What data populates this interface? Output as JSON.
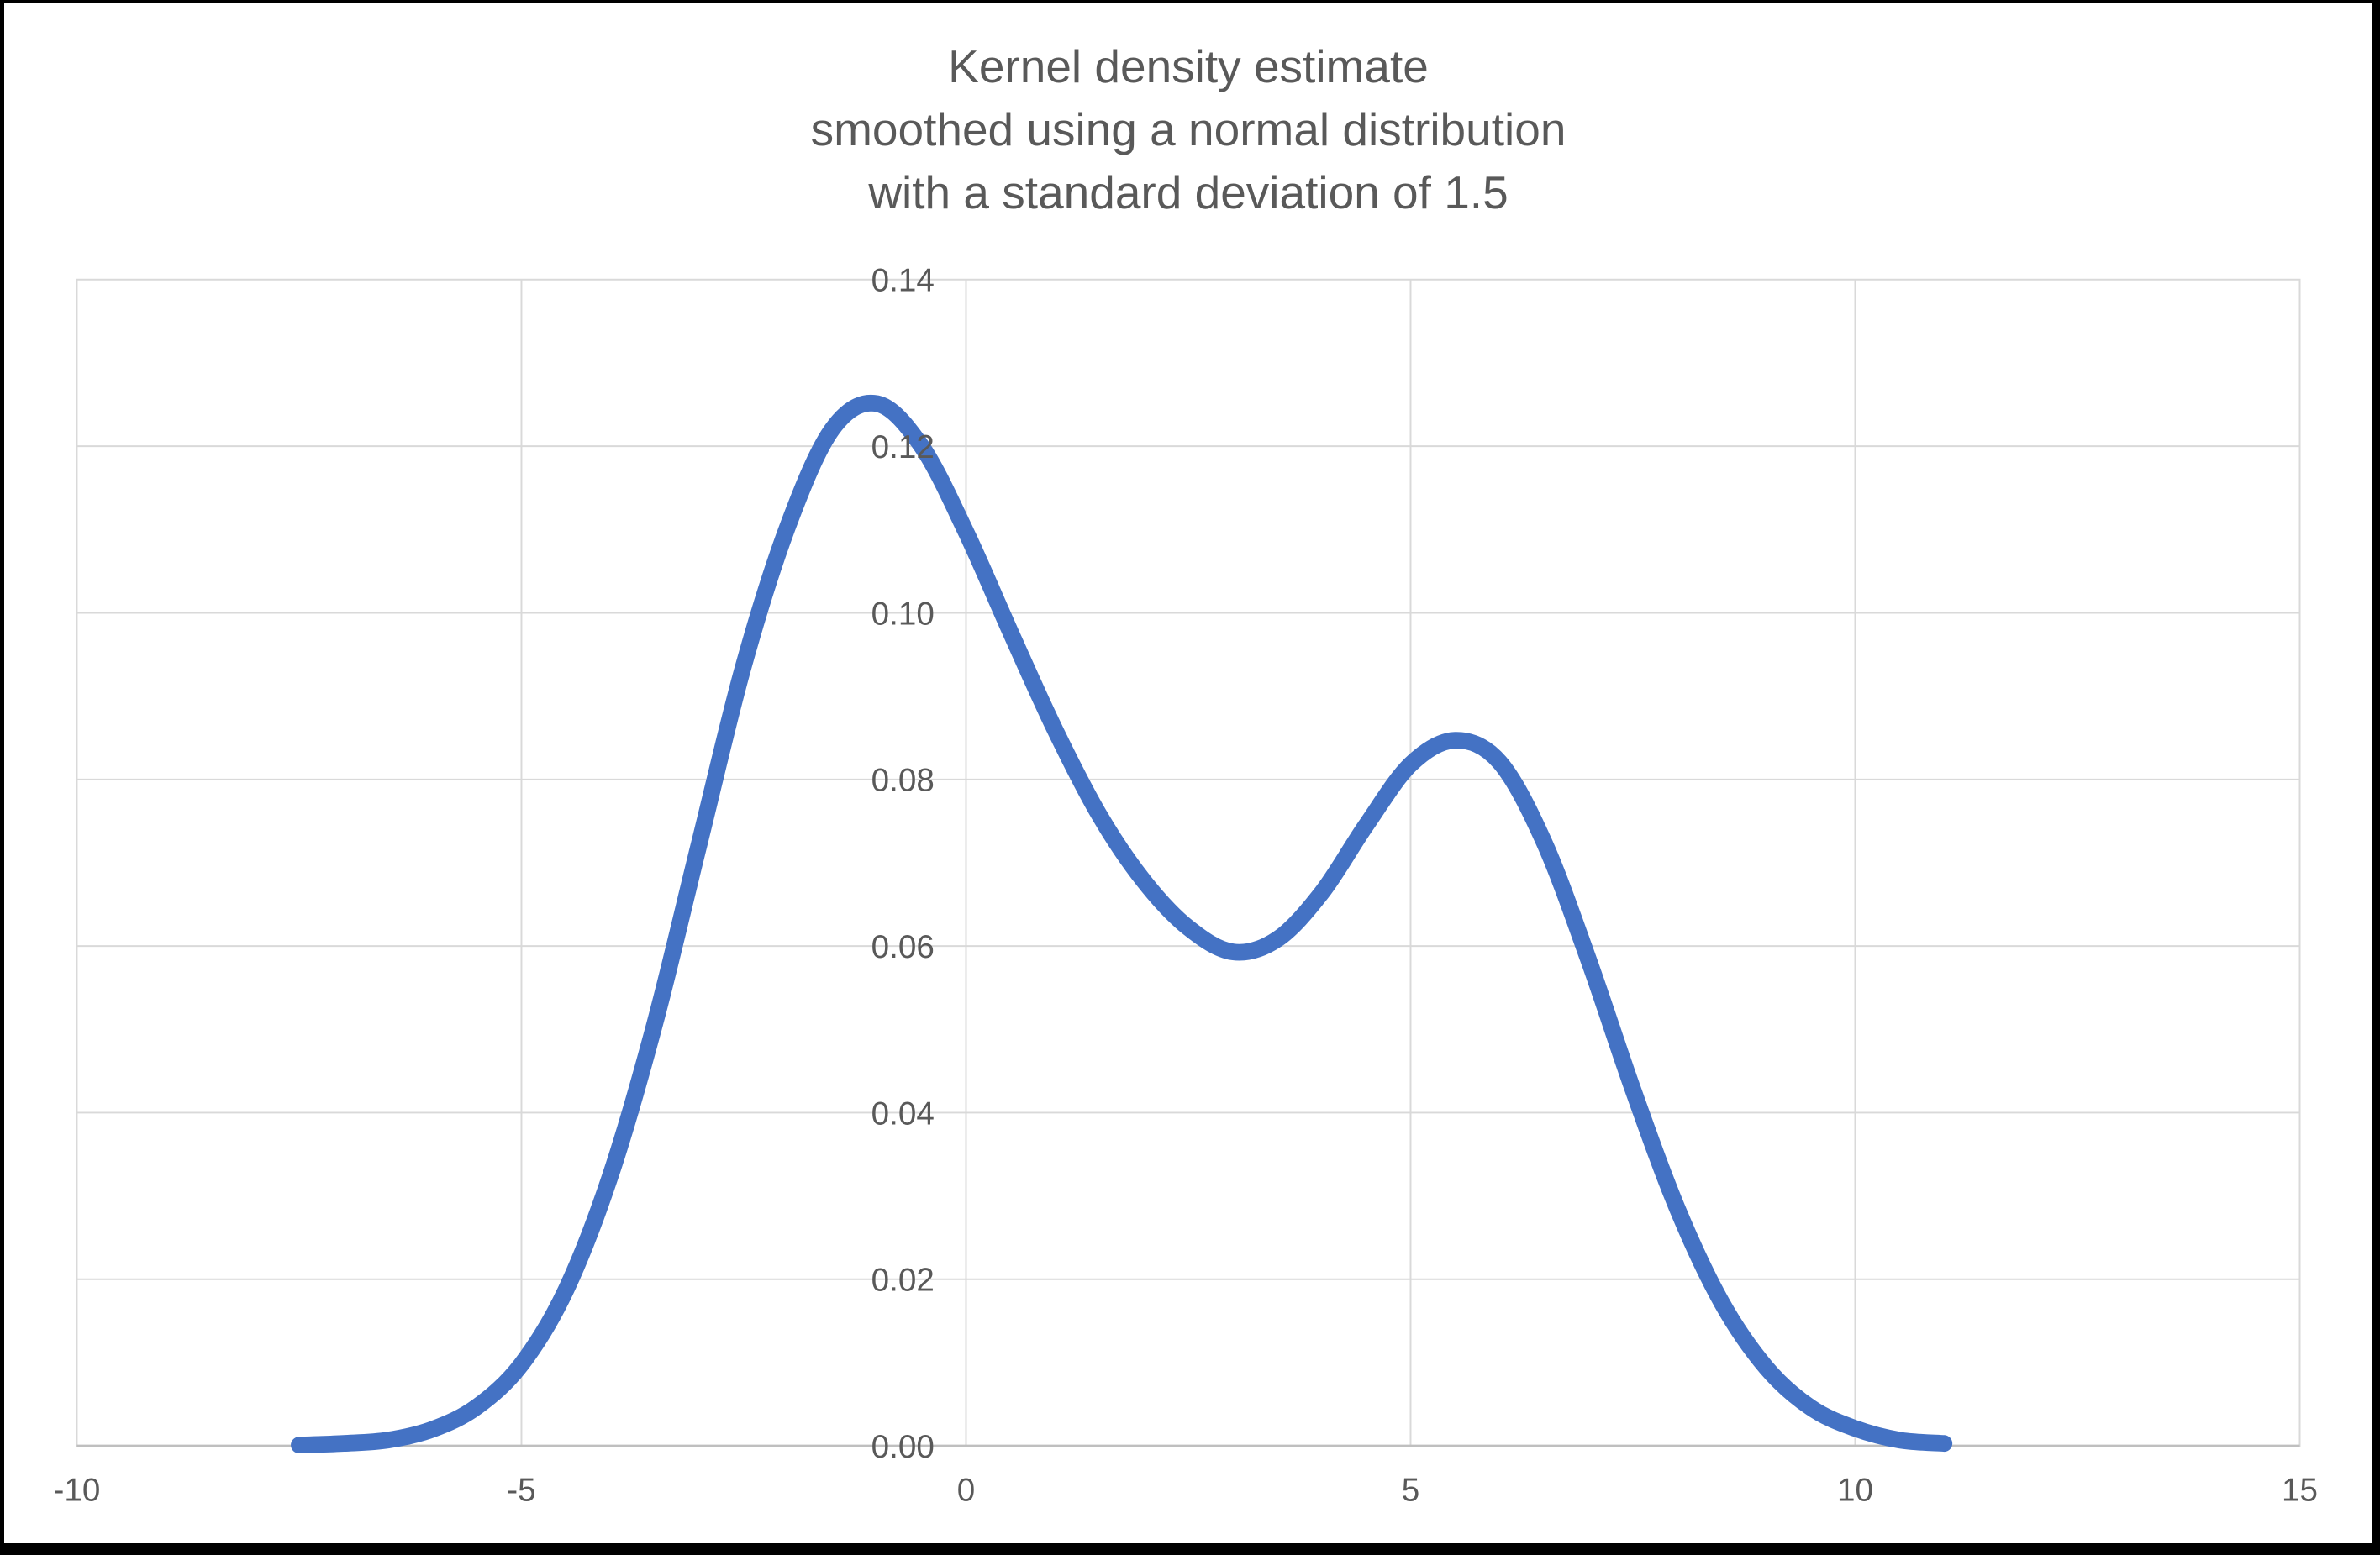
{
  "title": {
    "lines": [
      "Kernel density estimate",
      "smoothed using a normal distribution",
      "with a standard deviation of 1.5"
    ],
    "color": "#595959"
  },
  "chart_data": {
    "type": "line",
    "title": "Kernel density estimate smoothed using a normal distribution with a standard deviation of 1.5",
    "xlabel": "",
    "ylabel": "",
    "xlim": [
      -10,
      15
    ],
    "ylim": [
      0,
      0.14
    ],
    "x_ticks": [
      -10,
      -5,
      0,
      5,
      10,
      15
    ],
    "x_tick_labels": [
      "-10",
      "-5",
      "0",
      "5",
      "10",
      "15"
    ],
    "y_ticks": [
      0,
      0.02,
      0.04,
      0.06,
      0.08,
      0.1,
      0.12,
      0.14
    ],
    "y_tick_labels": [
      "0.00",
      "0.02",
      "0.04",
      "0.06",
      "0.08",
      "0.10",
      "0.12",
      "0.14"
    ],
    "grid": true,
    "legend": "none",
    "gridline_color": "#D9D9D9",
    "axis_line_color": "#BFBFBF",
    "tick_label_color": "#595959",
    "series": [
      {
        "name": "Kernel density estimate",
        "color": "#4472C4",
        "stroke_width": 20,
        "points": [
          [
            -7.5,
            0.0001
          ],
          [
            -7.0,
            0.0003
          ],
          [
            -6.5,
            0.0007
          ],
          [
            -6.0,
            0.002
          ],
          [
            -5.5,
            0.0047
          ],
          [
            -5.0,
            0.0098
          ],
          [
            -4.5,
            0.0187
          ],
          [
            -4.0,
            0.0324
          ],
          [
            -3.5,
            0.0507
          ],
          [
            -3.0,
            0.0723
          ],
          [
            -2.5,
            0.0937
          ],
          [
            -2.0,
            0.1105
          ],
          [
            -1.5,
            0.1221
          ],
          [
            -1.0,
            0.1251
          ],
          [
            -0.5,
            0.12
          ],
          [
            0.0,
            0.1097
          ],
          [
            0.5,
            0.0977
          ],
          [
            1.0,
            0.086
          ],
          [
            1.5,
            0.0757
          ],
          [
            2.0,
            0.0678
          ],
          [
            2.5,
            0.0622
          ],
          [
            3.0,
            0.0593
          ],
          [
            3.5,
            0.0608
          ],
          [
            4.0,
            0.0664
          ],
          [
            4.5,
            0.0745
          ],
          [
            5.0,
            0.0818
          ],
          [
            5.5,
            0.0847
          ],
          [
            6.0,
            0.0821
          ],
          [
            6.5,
            0.0725
          ],
          [
            7.0,
            0.0584
          ],
          [
            7.5,
            0.0428
          ],
          [
            8.0,
            0.0285
          ],
          [
            8.5,
            0.0172
          ],
          [
            9.0,
            0.0094
          ],
          [
            9.5,
            0.0046
          ],
          [
            10.0,
            0.0021
          ],
          [
            10.5,
            0.0007
          ],
          [
            11.0,
            0.0003
          ]
        ]
      }
    ]
  }
}
